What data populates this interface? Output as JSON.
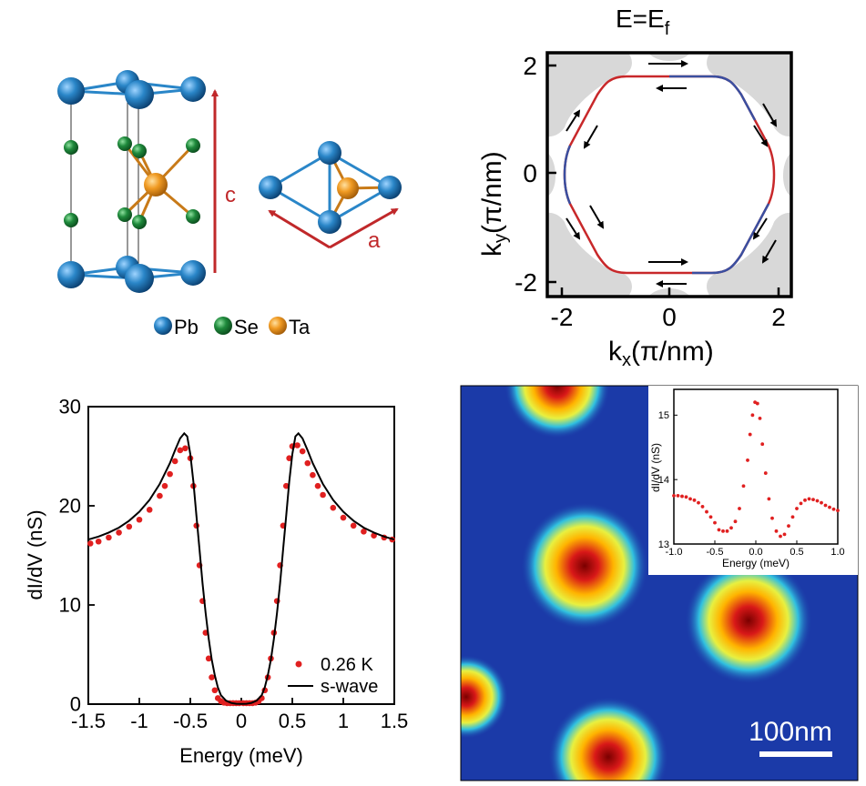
{
  "colors": {
    "pb": "#1f77b4",
    "se": "#1e7a36",
    "ta": "#e08a1a",
    "arrow_red": "#c0282a",
    "fermi_red": "#c8282a",
    "fermi_blue": "#3a4fa0",
    "grey": "#d8d8d8",
    "fit_line": "#000000",
    "data_red": "#e02020",
    "map_bg": "#1b3aa8"
  },
  "panel_a": {
    "label_c": "c",
    "label_a": "a",
    "legend": [
      {
        "label": "Pb",
        "color": "#1f77b4"
      },
      {
        "label": "Se",
        "color": "#1e7a36"
      },
      {
        "label": "Ta",
        "color": "#e08a1a"
      }
    ]
  },
  "panel_b": {
    "title_main": "E=E",
    "title_sub": "f",
    "xlabel_main": "k",
    "xlabel_sub": "x",
    "xlabel_rest": "(π/nm)",
    "ylabel_main": "k",
    "ylabel_sub": "y",
    "ylabel_rest": "(π/nm)",
    "xticks": [
      "-2",
      "0",
      "2"
    ],
    "yticks": [
      "2",
      "0",
      "-2"
    ]
  },
  "chart_data": [
    {
      "type": "scatter",
      "title": "",
      "xlabel": "Energy (meV)",
      "ylabel": "dI/dV (nS)",
      "xlim": [
        -1.5,
        1.5
      ],
      "ylim": [
        0,
        30
      ],
      "xticks": [
        "-1.5",
        "-1",
        "-0.5",
        "0",
        "0.5",
        "1",
        "1.5"
      ],
      "yticks": [
        "0",
        "10",
        "20",
        "30"
      ],
      "legend": [
        "0.26 K",
        "s-wave"
      ],
      "series": [
        {
          "name": "0.26 K",
          "style": "points",
          "x": [
            -1.48,
            -1.4,
            -1.3,
            -1.2,
            -1.1,
            -1.0,
            -0.9,
            -0.8,
            -0.75,
            -0.7,
            -0.65,
            -0.6,
            -0.55,
            -0.5,
            -0.47,
            -0.44,
            -0.41,
            -0.38,
            -0.35,
            -0.32,
            -0.29,
            -0.26,
            -0.23,
            -0.2,
            -0.17,
            -0.14,
            -0.11,
            -0.08,
            -0.05,
            -0.02,
            0.02,
            0.05,
            0.08,
            0.11,
            0.14,
            0.17,
            0.2,
            0.23,
            0.26,
            0.29,
            0.32,
            0.35,
            0.38,
            0.41,
            0.44,
            0.47,
            0.5,
            0.55,
            0.6,
            0.65,
            0.7,
            0.75,
            0.8,
            0.9,
            1.0,
            1.1,
            1.2,
            1.3,
            1.4,
            1.48
          ],
          "y": [
            16.2,
            16.4,
            16.8,
            17.3,
            17.9,
            18.6,
            19.6,
            21.0,
            22.0,
            23.2,
            24.5,
            25.6,
            25.8,
            24.8,
            22.0,
            18.0,
            14.0,
            10.4,
            7.2,
            4.6,
            2.7,
            1.4,
            0.6,
            0.3,
            0.15,
            0.1,
            0.1,
            0.1,
            0.1,
            0.1,
            0.1,
            0.1,
            0.1,
            0.1,
            0.15,
            0.3,
            0.6,
            1.4,
            2.7,
            4.6,
            7.2,
            10.4,
            14.0,
            18.0,
            22.0,
            24.8,
            26.0,
            26.1,
            25.5,
            24.3,
            23.1,
            22.0,
            21.1,
            19.8,
            18.8,
            18.0,
            17.4,
            17.0,
            16.8,
            16.6
          ]
        },
        {
          "name": "s-wave",
          "style": "line",
          "x": [
            -1.5,
            -1.4,
            -1.3,
            -1.2,
            -1.1,
            -1.0,
            -0.9,
            -0.8,
            -0.7,
            -0.65,
            -0.6,
            -0.56,
            -0.53,
            -0.5,
            -0.47,
            -0.44,
            -0.41,
            -0.38,
            -0.35,
            -0.32,
            -0.29,
            -0.26,
            -0.23,
            -0.2,
            -0.15,
            -0.1,
            -0.05,
            0.0,
            0.05,
            0.1,
            0.15,
            0.2,
            0.23,
            0.26,
            0.29,
            0.32,
            0.35,
            0.38,
            0.41,
            0.44,
            0.47,
            0.5,
            0.53,
            0.56,
            0.6,
            0.65,
            0.7,
            0.8,
            0.9,
            1.0,
            1.1,
            1.2,
            1.3,
            1.4,
            1.5
          ],
          "y": [
            16.6,
            16.9,
            17.3,
            17.8,
            18.5,
            19.4,
            20.6,
            22.2,
            24.3,
            25.6,
            26.8,
            27.3,
            27.0,
            25.2,
            22.4,
            19.0,
            15.6,
            12.2,
            9.2,
            6.6,
            4.5,
            2.9,
            1.7,
            0.9,
            0.35,
            0.12,
            0.04,
            0.02,
            0.04,
            0.12,
            0.35,
            0.9,
            1.7,
            2.9,
            4.5,
            6.6,
            9.2,
            12.2,
            15.6,
            19.0,
            22.4,
            25.2,
            27.0,
            27.3,
            26.8,
            25.6,
            24.3,
            22.2,
            20.6,
            19.4,
            18.5,
            17.8,
            17.3,
            16.9,
            16.6
          ]
        }
      ]
    },
    {
      "type": "scatter",
      "title": "",
      "xlabel": "Energy (meV)",
      "ylabel": "dI/dV (nS)",
      "xlim": [
        -1.0,
        1.0
      ],
      "ylim": [
        13,
        15.4
      ],
      "xticks": [
        "-1.0",
        "-0.5",
        "0.0",
        "0.5",
        "1.0"
      ],
      "yticks": [
        "13",
        "14",
        "15"
      ],
      "series": [
        {
          "name": "inset",
          "style": "points",
          "x": [
            -1.0,
            -0.95,
            -0.9,
            -0.85,
            -0.8,
            -0.75,
            -0.7,
            -0.65,
            -0.6,
            -0.55,
            -0.5,
            -0.45,
            -0.4,
            -0.35,
            -0.3,
            -0.25,
            -0.2,
            -0.15,
            -0.1,
            -0.07,
            -0.04,
            -0.01,
            0.02,
            0.05,
            0.08,
            0.12,
            0.16,
            0.2,
            0.25,
            0.3,
            0.35,
            0.4,
            0.45,
            0.5,
            0.55,
            0.6,
            0.65,
            0.7,
            0.75,
            0.8,
            0.85,
            0.9,
            0.95,
            1.0
          ],
          "y": [
            13.75,
            13.75,
            13.74,
            13.73,
            13.7,
            13.68,
            13.64,
            13.58,
            13.5,
            13.42,
            13.33,
            13.22,
            13.2,
            13.2,
            13.25,
            13.35,
            13.55,
            13.9,
            14.3,
            14.7,
            15.0,
            15.2,
            15.18,
            14.95,
            14.55,
            14.1,
            13.7,
            13.4,
            13.2,
            13.12,
            13.15,
            13.28,
            13.42,
            13.55,
            13.63,
            13.68,
            13.7,
            13.69,
            13.67,
            13.64,
            13.6,
            13.57,
            13.54,
            13.52
          ]
        }
      ]
    }
  ],
  "panel_d": {
    "scalebar_label": "100nm",
    "inset_ylabel": "dI/dV (nS)",
    "inset_xlabel": "Energy (meV)"
  }
}
